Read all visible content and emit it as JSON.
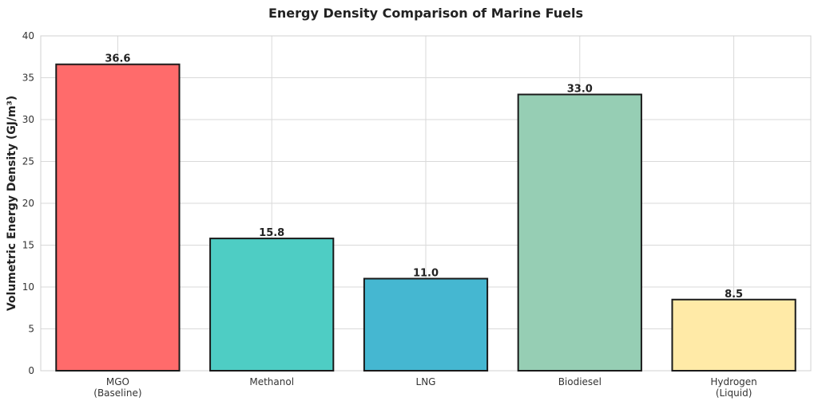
{
  "chart_data": {
    "type": "bar",
    "title": "Energy Density Comparison of Marine Fuels",
    "xlabel": "",
    "ylabel": "Volumetric Energy Density (GJ/m³)",
    "ylim": [
      0,
      40
    ],
    "yticks": [
      0,
      5,
      10,
      15,
      20,
      25,
      30,
      35,
      40
    ],
    "grid": true,
    "categories": [
      [
        "MGO",
        "(Baseline)"
      ],
      [
        "Methanol"
      ],
      [
        "LNG"
      ],
      [
        "Biodiesel"
      ],
      [
        "Hydrogen",
        "(Liquid)"
      ]
    ],
    "values": [
      36.6,
      15.8,
      11.0,
      33.0,
      8.5
    ],
    "value_labels": [
      "36.6",
      "15.8",
      "11.0",
      "33.0",
      "8.5"
    ],
    "colors": [
      "#ff6b6b",
      "#4ecdc4",
      "#45b7d1",
      "#96ceb4",
      "#ffeaa7"
    ]
  }
}
